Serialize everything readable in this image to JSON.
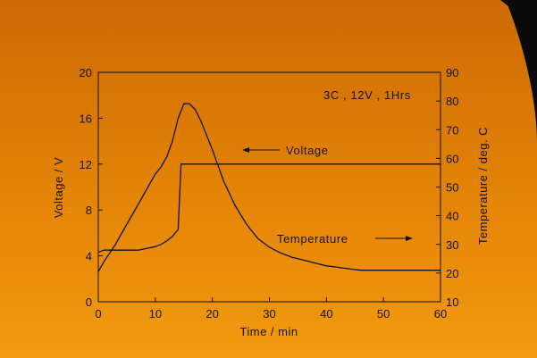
{
  "chart_data": {
    "type": "line",
    "xlabel": "Time / min",
    "ylabel_left": "Voltage / V",
    "ylabel_right": "Temperature / deg. C",
    "xlim": [
      0,
      60
    ],
    "ylim_left": [
      0,
      20
    ],
    "ylim_right": [
      10,
      90
    ],
    "x_ticks": [
      "0",
      "10",
      "20",
      "30",
      "40",
      "50",
      "60"
    ],
    "y_left_ticks": [
      "0",
      "4",
      "8",
      "12",
      "16",
      "20"
    ],
    "y_right_ticks": [
      "10",
      "20",
      "30",
      "40",
      "50",
      "60",
      "70",
      "80",
      "90"
    ],
    "grid": false,
    "legend": null,
    "annotations": {
      "condition": "3C , 12V , 1Hrs",
      "voltage_label": "Voltage",
      "temperature_label": "Temperature"
    },
    "series": [
      {
        "name": "Voltage",
        "axis": "left",
        "x": [
          0,
          1,
          2,
          3,
          4,
          5,
          6,
          7,
          8,
          9,
          10,
          11,
          12,
          13,
          14,
          14.5,
          60
        ],
        "y": [
          4.3,
          4.5,
          4.5,
          4.5,
          4.5,
          4.5,
          4.5,
          4.5,
          4.6,
          4.7,
          4.8,
          5.0,
          5.3,
          5.7,
          6.3,
          12,
          12
        ]
      },
      {
        "name": "Temperature",
        "axis": "right",
        "x": [
          0,
          1,
          2,
          3,
          4,
          5,
          6,
          7,
          8,
          9,
          10,
          11,
          12,
          13,
          14,
          15,
          16,
          17,
          18,
          20,
          22,
          24,
          26,
          28,
          30,
          32,
          34,
          36,
          38,
          40,
          42,
          44,
          46,
          48,
          50,
          52,
          54,
          56,
          58,
          60
        ],
        "y": [
          20.5,
          24,
          27,
          30,
          33.5,
          37,
          40.5,
          44,
          47.5,
          51,
          54.5,
          57,
          60.5,
          66,
          74,
          79,
          79,
          77,
          73,
          63,
          52,
          43.5,
          37,
          32,
          29,
          27,
          25.5,
          24.5,
          23.5,
          22.5,
          22,
          21.5,
          21,
          21,
          21,
          21,
          21,
          21,
          21,
          21
        ]
      }
    ]
  }
}
